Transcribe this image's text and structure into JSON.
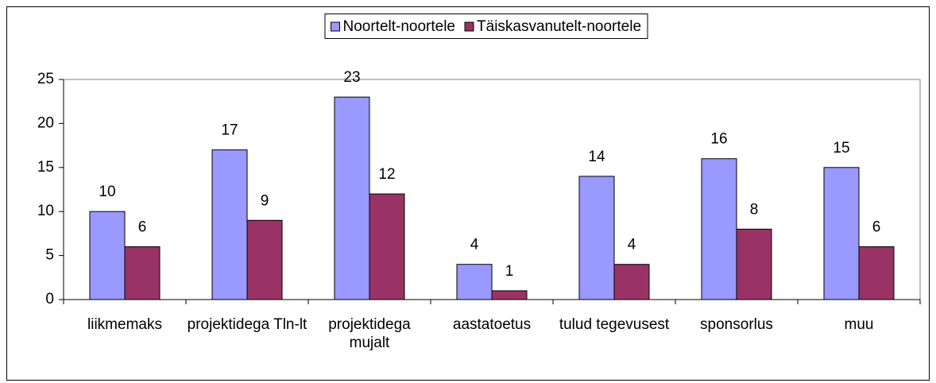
{
  "chart_data": {
    "type": "bar",
    "categories": [
      "liikmemaks",
      "projektidega Tln-lt",
      "projektidega mujalt",
      "aastatoetus",
      "tulud tegevusest",
      "sponsorlus",
      "muu"
    ],
    "series": [
      {
        "name": "Noortelt-noortele",
        "color": "#9999ff",
        "values": [
          10,
          17,
          23,
          4,
          14,
          16,
          15
        ]
      },
      {
        "name": "Täiskasvanutelt-noortele",
        "color": "#993366",
        "values": [
          6,
          9,
          12,
          1,
          4,
          8,
          6
        ]
      }
    ],
    "ylim": [
      0,
      25
    ],
    "yticks": [
      0,
      5,
      10,
      15,
      20,
      25
    ],
    "grid": false,
    "legend": "top"
  }
}
